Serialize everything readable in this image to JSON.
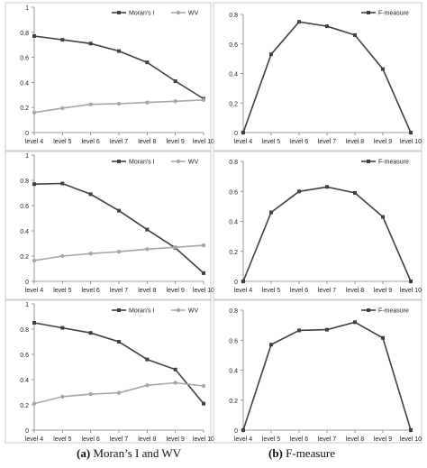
{
  "chart_data": [
    {
      "type": "line",
      "panel": "a-top",
      "categories": [
        "level 4",
        "level 5",
        "level 6",
        "level 7",
        "level 8",
        "level 9",
        "level 10"
      ],
      "ylim": [
        0,
        1
      ],
      "yticks": [
        "0",
        "0.2",
        "0.4",
        "0.6",
        "0.8",
        "1"
      ],
      "grid": false,
      "legend": "top-right",
      "series": [
        {
          "name": "Moran's I",
          "color": "#404040",
          "values": [
            0.77,
            0.74,
            0.71,
            0.65,
            0.56,
            0.41,
            0.27
          ]
        },
        {
          "name": "WV",
          "color": "#a6a6a6",
          "values": [
            0.16,
            0.195,
            0.225,
            0.23,
            0.24,
            0.25,
            0.26
          ]
        }
      ]
    },
    {
      "type": "line",
      "panel": "b-top",
      "categories": [
        "level 4",
        "level 5",
        "level 6",
        "level 7",
        "level 8",
        "level 9",
        "level 10"
      ],
      "ylim": [
        0,
        0.8
      ],
      "yticks": [
        "0",
        "0.2",
        "0.4",
        "0.6",
        "0.8"
      ],
      "grid": false,
      "legend": "top-right",
      "series": [
        {
          "name": "F-measure",
          "color": "#404040",
          "values": [
            0.0,
            0.53,
            0.75,
            0.72,
            0.66,
            0.43,
            0.0
          ]
        }
      ]
    },
    {
      "type": "line",
      "panel": "a-middle",
      "categories": [
        "level 4",
        "level 5",
        "level 6",
        "level 7",
        "level 8",
        "level 9",
        "level 10"
      ],
      "ylim": [
        0,
        1
      ],
      "yticks": [
        "0",
        "0.2",
        "0.4",
        "0.6",
        "0.8",
        "1"
      ],
      "grid": false,
      "legend": "top-right",
      "series": [
        {
          "name": "Moran's I",
          "color": "#404040",
          "values": [
            0.77,
            0.775,
            0.69,
            0.56,
            0.41,
            0.265,
            0.065
          ]
        },
        {
          "name": "WV",
          "color": "#a6a6a6",
          "values": [
            0.165,
            0.2,
            0.22,
            0.235,
            0.255,
            0.27,
            0.285
          ]
        }
      ]
    },
    {
      "type": "line",
      "panel": "b-middle",
      "categories": [
        "level 4",
        "level 5",
        "level 6",
        "level 7",
        "level 8",
        "level 9",
        "level 10"
      ],
      "ylim": [
        0,
        0.8
      ],
      "yticks": [
        "0",
        "0.2",
        "0.4",
        "0.6",
        "0.8"
      ],
      "grid": false,
      "legend": "top-right",
      "series": [
        {
          "name": "F-measure",
          "color": "#404040",
          "values": [
            0.0,
            0.46,
            0.6,
            0.63,
            0.59,
            0.43,
            0.0
          ]
        }
      ]
    },
    {
      "type": "line",
      "panel": "a-bottom",
      "categories": [
        "level 4",
        "level 5",
        "level 6",
        "level 7",
        "level 8",
        "level 9",
        "level 10"
      ],
      "ylim": [
        0,
        1
      ],
      "yticks": [
        "0",
        "0.2",
        "0.4",
        "0.6",
        "0.8",
        "1"
      ],
      "grid": false,
      "legend": "top-right",
      "series": [
        {
          "name": "Moran's I",
          "color": "#404040",
          "values": [
            0.85,
            0.81,
            0.77,
            0.7,
            0.56,
            0.48,
            0.21
          ]
        },
        {
          "name": "WV",
          "color": "#a6a6a6",
          "values": [
            0.21,
            0.265,
            0.285,
            0.295,
            0.355,
            0.375,
            0.35
          ]
        }
      ]
    },
    {
      "type": "line",
      "panel": "b-bottom",
      "categories": [
        "level 4",
        "level 5",
        "level 6",
        "level 7",
        "level 8",
        "level 9",
        "level 10"
      ],
      "ylim": [
        0,
        0.8
      ],
      "yticks": [
        "0",
        "0.2",
        "0.4",
        "0.6",
        "0.8"
      ],
      "grid": false,
      "legend": "top-right",
      "series": [
        {
          "name": "F-measure",
          "color": "#404040",
          "values": [
            0.0,
            0.57,
            0.665,
            0.67,
            0.72,
            0.615,
            0.0
          ]
        }
      ]
    }
  ],
  "captions": {
    "a_label": "(a)",
    "a_text": " Moran’s I and WV",
    "b_label": "(b)",
    "b_text": " F-measure"
  }
}
